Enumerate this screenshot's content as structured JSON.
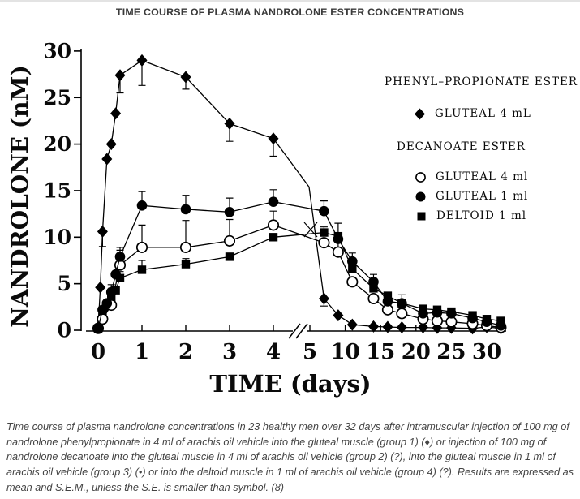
{
  "title": "TIME COURSE OF PLASMA NANDROLONE ESTER CONCENTRATIONS",
  "legend": {
    "group1": {
      "header": "PHENYL–PROPIONATE ESTER",
      "items": [
        {
          "marker": "filled-diamond",
          "label": "GLUTEAL 4 mL"
        }
      ]
    },
    "group2": {
      "header": "DECANOATE ESTER",
      "items": [
        {
          "marker": "open-circle",
          "label": "GLUTEAL 4 ml"
        },
        {
          "marker": "filled-circle",
          "label": "GLUTEAL 1 ml"
        },
        {
          "marker": "filled-square",
          "label": "DELTOID 1 ml"
        }
      ]
    }
  },
  "chart_data": {
    "type": "line",
    "title": "TIME COURSE OF PLASMA NANDROLONE ESTER CONCENTRATIONS",
    "xlabel": "TIME (days)",
    "ylabel": "NANDROLONE (nM)",
    "ylim": [
      0,
      30
    ],
    "yticks": [
      0,
      5,
      10,
      15,
      20,
      25,
      30
    ],
    "xticks": [
      0,
      1,
      2,
      3,
      4,
      5,
      10,
      15,
      20,
      25,
      30
    ],
    "axis_break": {
      "axis": "x",
      "between": [
        4,
        5
      ]
    },
    "grid": false,
    "line_color": "#000000",
    "background": "#ffffff",
    "error_bars": "S.E.M., plotted one-sided; 0 means smaller than symbol",
    "series": [
      {
        "id": "pp-gluteal-4ml",
        "name": "PHENYL-PROPIONATE ESTER GLUTEAL 4 mL",
        "marker": "filled-diamond",
        "x": [
          0,
          0.05,
          0.1,
          0.2,
          0.3,
          0.4,
          0.5,
          1,
          2,
          3,
          4,
          7,
          9,
          11,
          14,
          16,
          18,
          21,
          23,
          25,
          28,
          30,
          32
        ],
        "y": [
          0.3,
          4.6,
          10.6,
          18.4,
          20.0,
          23.3,
          27.4,
          29.0,
          27.2,
          22.2,
          20.6,
          3.4,
          1.6,
          0.6,
          0.4,
          0.35,
          0.3,
          0.3,
          0.25,
          0.25,
          0.2,
          0.35,
          0.2
        ],
        "err": [
          0,
          0,
          -1.6,
          0,
          0,
          0,
          -1.9,
          -2.7,
          -1.3,
          -1.9,
          -1.9,
          -0.8,
          0,
          0,
          0,
          0,
          0,
          0,
          0,
          0,
          0,
          0,
          0
        ],
        "bend": {
          "day": 4.88,
          "value": 15.4
        }
      },
      {
        "id": "dec-deltoid-1ml",
        "name": "DECANOATE ESTER DELTOID 1 ml",
        "marker": "filled-square",
        "x": [
          0,
          0.1,
          0.2,
          0.3,
          0.4,
          0.5,
          1,
          2,
          3,
          4,
          7,
          9,
          11,
          14,
          16,
          18,
          21,
          23,
          25,
          28,
          30,
          32
        ],
        "y": [
          0.2,
          1.6,
          2.6,
          3.5,
          4.3,
          5.6,
          6.5,
          7.1,
          7.9,
          10.0,
          10.5,
          10.1,
          6.6,
          4.5,
          3.7,
          2.9,
          2.3,
          2.2,
          2.0,
          1.6,
          1.2,
          1.0
        ],
        "err": [
          0,
          0,
          0,
          0,
          0,
          0.7,
          1.0,
          0.6,
          0,
          0,
          0,
          0,
          0,
          0,
          0,
          0,
          0,
          0,
          0,
          0,
          0,
          0
        ]
      },
      {
        "id": "dec-gluteal-4ml",
        "name": "DECANOATE ESTER GLUTEAL 4 ml",
        "marker": "open-circle",
        "x": [
          0,
          0.1,
          0.3,
          0.5,
          1,
          2,
          3,
          4,
          7,
          9,
          11,
          14,
          16,
          18,
          21,
          23,
          25,
          28,
          30,
          32
        ],
        "y": [
          0.2,
          1.2,
          2.7,
          7.0,
          8.9,
          8.9,
          9.6,
          11.3,
          9.4,
          8.4,
          5.2,
          3.4,
          2.2,
          1.8,
          1.2,
          1.0,
          0.9,
          0.7,
          0.5,
          0.3
        ],
        "err": [
          0,
          0,
          0,
          1.6,
          2.4,
          2.9,
          2.3,
          1.5,
          1.7,
          1.0,
          0,
          0,
          0,
          0,
          0,
          0,
          0,
          0,
          0,
          0
        ]
      },
      {
        "id": "dec-gluteal-1ml",
        "name": "DECANOATE ESTER GLUTEAL 1 ml",
        "marker": "filled-circle",
        "x": [
          0,
          0.1,
          0.2,
          0.3,
          0.4,
          0.5,
          1,
          2,
          3,
          4,
          7,
          9,
          11,
          14,
          16,
          18,
          21,
          23,
          25,
          28,
          30,
          32
        ],
        "y": [
          0.2,
          2.2,
          2.9,
          4.1,
          6.0,
          7.9,
          13.4,
          13.0,
          12.7,
          13.8,
          12.8,
          9.8,
          7.4,
          5.2,
          3.1,
          2.9,
          1.8,
          1.9,
          1.8,
          1.3,
          0.9,
          0.5
        ],
        "err": [
          0,
          0,
          0,
          0.8,
          0,
          1.0,
          1.5,
          1.5,
          1.5,
          1.3,
          1.1,
          1.7,
          0.9,
          0.8,
          0,
          0.9,
          0,
          0,
          0,
          0,
          0,
          0
        ]
      }
    ]
  },
  "caption": "Time course of plasma nandrolone concentrations in 23 healthy men over 32 days after intramuscular injection of 100 mg of nandrolone phenylpropionate in 4 ml of arachis oil vehicle into the gluteal muscle (group 1) (♦) or injection of 100 mg of nandrolone decanoate into the gluteal muscle in 4 ml of arachis oil vehicle (group 2) (?), into the gluteal muscle in 1 ml of arachis oil vehicle (group 3) (•) or into the deltoid muscle in 1 ml of arachis oil vehicle (group 4) (?). Results are expressed as mean and S.E.M., unless the S.E. is smaller than symbol. (8)"
}
